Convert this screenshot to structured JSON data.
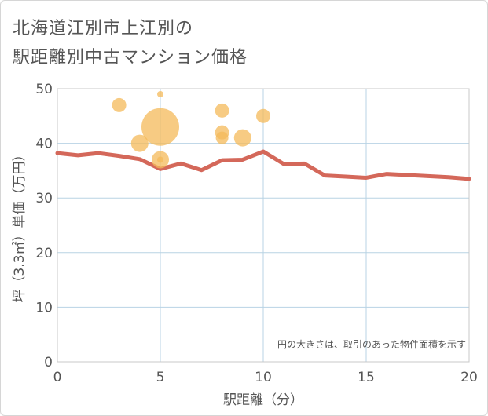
{
  "header": {
    "title_line1": "北海道江別市上江別の",
    "title_line2": "駅距離別中古マンション価格"
  },
  "note": "円の大きさは、取引のあった物件面積を示す",
  "colors": {
    "line": "#d4685a",
    "bubble": "#f4b95a",
    "grid": "#b8d3e4",
    "axis_text": "#555555"
  },
  "chart_data": {
    "type": "scatter",
    "xlabel": "駅距離（分）",
    "ylabel": "坪（3.3㎡）単価（万円）",
    "xlim": [
      0,
      20
    ],
    "ylim": [
      0,
      50
    ],
    "x_ticks": [
      0,
      5,
      10,
      15,
      20
    ],
    "y_ticks": [
      0,
      10,
      20,
      30,
      40,
      50
    ],
    "grid": true,
    "series": [
      {
        "kind": "line",
        "x": [
          0,
          1,
          2,
          3,
          4,
          5,
          6,
          7,
          8,
          9,
          10,
          11,
          12,
          13,
          14,
          15,
          16,
          17,
          18,
          19,
          20
        ],
        "y": [
          38.2,
          37.8,
          38.2,
          37.7,
          37.1,
          35.3,
          36.3,
          35.1,
          36.9,
          37.0,
          38.5,
          36.2,
          36.3,
          34.1,
          33.9,
          33.7,
          34.4,
          34.2,
          34.0,
          33.8,
          33.5
        ]
      },
      {
        "kind": "bubble",
        "points": [
          {
            "x": 3,
            "y": 47,
            "size": 9
          },
          {
            "x": 4,
            "y": 40,
            "size": 11
          },
          {
            "x": 5,
            "y": 49,
            "size": 4
          },
          {
            "x": 5,
            "y": 43,
            "size": 24
          },
          {
            "x": 5,
            "y": 37,
            "size": 11
          },
          {
            "x": 5,
            "y": 37,
            "size": 4
          },
          {
            "x": 8,
            "y": 46,
            "size": 9
          },
          {
            "x": 8,
            "y": 42,
            "size": 9
          },
          {
            "x": 8,
            "y": 41,
            "size": 8
          },
          {
            "x": 9,
            "y": 41,
            "size": 11
          },
          {
            "x": 10,
            "y": 45,
            "size": 9
          }
        ]
      }
    ]
  }
}
